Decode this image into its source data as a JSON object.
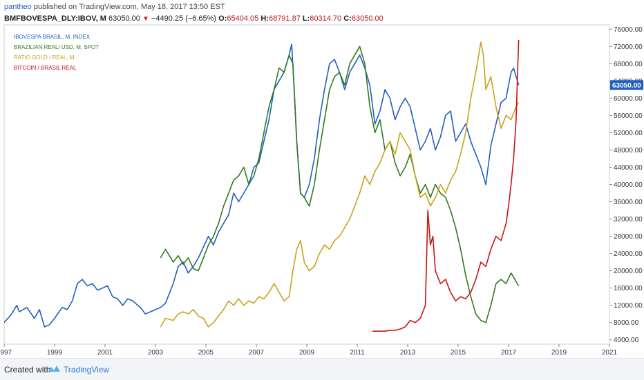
{
  "header": {
    "user": "pantheo",
    "published_text": "published on TradingView.com, May 18, 2017 13:50 EST",
    "symbol": "BMFBOVESPA_DLY:IBOV, M",
    "last": "63050.00",
    "down_arrow": "▼",
    "change": "−4490.25 (−6.65%)",
    "open_label": "O:",
    "open": "65404.05",
    "high_label": "H:",
    "high": "68791.87",
    "low_label": "L:",
    "low": "60314.70",
    "close_label": "C:",
    "close": "63050.00"
  },
  "footer": {
    "created_with": "Created with",
    "brand": "TradingView"
  },
  "colors": {
    "ibov": "#1f5fbf",
    "brl": "#2f7a1a",
    "gold": "#c9a21a",
    "btc": "#cc1111",
    "price_tag": "#1f5fbf"
  },
  "chart_data": {
    "type": "line",
    "title": "",
    "xlabel": "",
    "ylabel": "",
    "xlim": [
      1997.0,
      2021.0
    ],
    "ylim": [
      3000,
      77000
    ],
    "x_ticks": [
      "1997",
      "1999",
      "2001",
      "2003",
      "2005",
      "2007",
      "2009",
      "2011",
      "2013",
      "2015",
      "2017",
      "2019",
      "2021"
    ],
    "x_tick_values": [
      1997,
      1999,
      2001,
      2003,
      2005,
      2007,
      2009,
      2011,
      2013,
      2015,
      2017,
      2019,
      2021
    ],
    "y_ticks": [
      "4000.00",
      "8000.00",
      "12000.00",
      "16000.00",
      "20000.00",
      "24000.00",
      "28000.00",
      "32000.00",
      "36000.00",
      "40000.00",
      "44000.00",
      "48000.00",
      "52000.00",
      "56000.00",
      "60000.00",
      "64000.00",
      "68000.00",
      "72000.00",
      "76000.00"
    ],
    "y_tick_values": [
      4000,
      8000,
      12000,
      16000,
      20000,
      24000,
      28000,
      32000,
      36000,
      40000,
      44000,
      48000,
      52000,
      56000,
      60000,
      64000,
      68000,
      72000,
      76000
    ],
    "price_label": "63050.00",
    "price_value": 63050,
    "legend_position": "top-left",
    "series": [
      {
        "name": "IBOVESPA BRASIL, M, INDEX",
        "color_key": "ibov",
        "x": [
          1997.0,
          1997.3,
          1997.5,
          1997.6,
          1997.9,
          1998.2,
          1998.4,
          1998.6,
          1998.8,
          1999.0,
          1999.3,
          1999.5,
          1999.7,
          1999.9,
          2000.1,
          2000.3,
          2000.5,
          2000.7,
          2000.9,
          2001.1,
          2001.3,
          2001.5,
          2001.7,
          2001.9,
          2002.1,
          2002.4,
          2002.6,
          2002.8,
          2003.0,
          2003.2,
          2003.4,
          2003.7,
          2003.9,
          2004.1,
          2004.3,
          2004.5,
          2004.7,
          2004.9,
          2005.1,
          2005.3,
          2005.5,
          2005.7,
          2005.9,
          2006.1,
          2006.3,
          2006.5,
          2006.7,
          2006.9,
          2007.1,
          2007.3,
          2007.5,
          2007.7,
          2007.9,
          2008.1,
          2008.3,
          2008.4,
          2008.5,
          2008.6,
          2008.75,
          2008.9,
          2009.1,
          2009.3,
          2009.5,
          2009.7,
          2009.9,
          2010.1,
          2010.3,
          2010.5,
          2010.7,
          2010.9,
          2011.1,
          2011.3,
          2011.5,
          2011.7,
          2011.9,
          2012.1,
          2012.3,
          2012.5,
          2012.7,
          2012.9,
          2013.1,
          2013.3,
          2013.5,
          2013.7,
          2013.9,
          2014.1,
          2014.3,
          2014.5,
          2014.7,
          2014.9,
          2015.1,
          2015.3,
          2015.5,
          2015.7,
          2015.9,
          2016.1,
          2016.3,
          2016.5,
          2016.7,
          2016.9,
          2017.1,
          2017.2,
          2017.4
        ],
        "y": [
          8000,
          10000,
          12000,
          10500,
          11500,
          9000,
          11000,
          7000,
          7500,
          9000,
          11500,
          11000,
          13000,
          17000,
          18000,
          16500,
          17000,
          15500,
          16000,
          16500,
          14000,
          13500,
          12000,
          13500,
          13000,
          11500,
          10000,
          10500,
          11000,
          11500,
          12500,
          17000,
          21000,
          22000,
          19500,
          21000,
          23000,
          25500,
          28000,
          26000,
          29000,
          31000,
          33000,
          38000,
          36000,
          38000,
          40000,
          44000,
          45000,
          50000,
          55000,
          62000,
          64000,
          66000,
          70000,
          72500,
          62000,
          50000,
          38000,
          37000,
          40000,
          46000,
          55000,
          62000,
          68000,
          69000,
          66000,
          62000,
          66000,
          68000,
          70000,
          67000,
          63000,
          54000,
          57000,
          62000,
          60000,
          55000,
          58000,
          60000,
          58000,
          53000,
          48000,
          50000,
          53000,
          48000,
          51000,
          56000,
          57000,
          50000,
          52000,
          54000,
          50000,
          47000,
          44000,
          40000,
          49000,
          54000,
          59000,
          60000,
          66000,
          67000,
          63050
        ]
      },
      {
        "name": "BRAZILIAN REAL/ USD, M, SPOT",
        "color_key": "brl",
        "x": [
          2003.2,
          2003.4,
          2003.7,
          2003.9,
          2004.1,
          2004.3,
          2004.5,
          2004.7,
          2004.9,
          2005.1,
          2005.3,
          2005.5,
          2005.7,
          2005.9,
          2006.1,
          2006.3,
          2006.5,
          2006.7,
          2006.9,
          2007.1,
          2007.3,
          2007.5,
          2007.7,
          2007.9,
          2008.1,
          2008.3,
          2008.45,
          2008.6,
          2008.75,
          2008.9,
          2009.1,
          2009.3,
          2009.5,
          2009.7,
          2009.9,
          2010.1,
          2010.3,
          2010.5,
          2010.7,
          2010.9,
          2011.1,
          2011.3,
          2011.5,
          2011.7,
          2011.9,
          2012.1,
          2012.3,
          2012.5,
          2012.7,
          2012.9,
          2013.1,
          2013.3,
          2013.5,
          2013.7,
          2013.9,
          2014.1,
          2014.3,
          2014.5,
          2014.7,
          2014.9,
          2015.1,
          2015.3,
          2015.5,
          2015.7,
          2015.9,
          2016.1,
          2016.3,
          2016.5,
          2016.7,
          2016.9,
          2017.1,
          2017.2,
          2017.4
        ],
        "y": [
          23000,
          25000,
          22000,
          23500,
          21500,
          23000,
          20500,
          20000,
          23000,
          26000,
          28000,
          31000,
          35000,
          38000,
          41000,
          42000,
          44000,
          40000,
          42000,
          46000,
          52000,
          58000,
          62000,
          67000,
          66000,
          70000,
          68000,
          50000,
          38000,
          37000,
          35000,
          40000,
          48000,
          55000,
          62000,
          65000,
          66000,
          63000,
          68000,
          70000,
          72000,
          68000,
          58000,
          52000,
          55000,
          48000,
          50000,
          45000,
          42000,
          44000,
          47000,
          42000,
          38000,
          40000,
          37000,
          40000,
          38000,
          37000,
          34000,
          30000,
          25000,
          19000,
          14000,
          10000,
          8500,
          8000,
          12000,
          17000,
          18000,
          17000,
          19500,
          18500,
          16500
        ]
      },
      {
        "name": "RATIO GOLD / REAL, M",
        "color_key": "gold",
        "x": [
          2003.2,
          2003.4,
          2003.7,
          2003.9,
          2004.1,
          2004.3,
          2004.5,
          2004.7,
          2004.9,
          2005.1,
          2005.3,
          2005.5,
          2005.7,
          2005.9,
          2006.1,
          2006.3,
          2006.5,
          2006.7,
          2006.9,
          2007.1,
          2007.3,
          2007.5,
          2007.7,
          2007.9,
          2008.1,
          2008.3,
          2008.45,
          2008.6,
          2008.75,
          2008.9,
          2009.1,
          2009.3,
          2009.5,
          2009.7,
          2009.9,
          2010.1,
          2010.3,
          2010.5,
          2010.7,
          2010.9,
          2011.1,
          2011.3,
          2011.5,
          2011.7,
          2011.9,
          2012.1,
          2012.3,
          2012.5,
          2012.7,
          2012.9,
          2013.1,
          2013.3,
          2013.5,
          2013.7,
          2013.9,
          2014.1,
          2014.3,
          2014.5,
          2014.7,
          2014.9,
          2015.1,
          2015.3,
          2015.5,
          2015.7,
          2015.9,
          2016.0,
          2016.1,
          2016.3,
          2016.5,
          2016.7,
          2016.9,
          2017.1,
          2017.3,
          2017.4
        ],
        "y": [
          7000,
          9000,
          8500,
          10000,
          10500,
          10000,
          11000,
          9500,
          9000,
          7000,
          8000,
          9500,
          11000,
          13000,
          12000,
          13500,
          12000,
          13000,
          12500,
          14000,
          13500,
          15000,
          17000,
          15000,
          13000,
          14000,
          20000,
          25000,
          27000,
          22000,
          20000,
          21000,
          24000,
          26000,
          25000,
          27000,
          28000,
          30000,
          32000,
          35000,
          38000,
          42000,
          40000,
          43000,
          45000,
          48000,
          50000,
          47000,
          52000,
          50000,
          48000,
          42000,
          37000,
          38000,
          35000,
          37000,
          40000,
          38000,
          41000,
          43000,
          47000,
          52000,
          60000,
          66000,
          73000,
          70000,
          62000,
          65000,
          58000,
          53000,
          56000,
          55000,
          58000,
          59000
        ]
      },
      {
        "name": "BITCOIN / BRASIL REAL",
        "color_key": "btc",
        "x": [
          2011.6,
          2011.9,
          2012.1,
          2012.3,
          2012.5,
          2012.7,
          2012.9,
          2013.1,
          2013.3,
          2013.5,
          2013.7,
          2013.8,
          2013.9,
          2014.0,
          2014.1,
          2014.3,
          2014.5,
          2014.7,
          2014.9,
          2015.1,
          2015.3,
          2015.5,
          2015.7,
          2015.9,
          2016.1,
          2016.3,
          2016.5,
          2016.7,
          2016.9,
          2017.0,
          2017.1,
          2017.2,
          2017.3,
          2017.4
        ],
        "y": [
          6000,
          6000,
          6000,
          6200,
          6200,
          6500,
          7000,
          8500,
          8000,
          9000,
          12000,
          34000,
          26000,
          28000,
          20000,
          17000,
          18000,
          15000,
          13000,
          14000,
          13500,
          15000,
          18000,
          22000,
          21000,
          25000,
          28000,
          27000,
          31000,
          35000,
          40000,
          46000,
          55000,
          73500
        ]
      }
    ]
  }
}
